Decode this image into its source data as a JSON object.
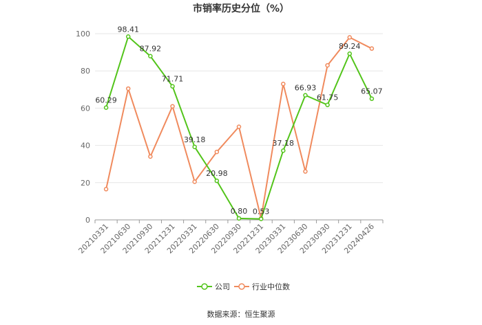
{
  "chart_data": {
    "type": "line",
    "title": "市销率历史分位（%）",
    "categories": [
      "20210331",
      "20210630",
      "20210930",
      "20211231",
      "20220331",
      "20220630",
      "20220930",
      "20221231",
      "20230331",
      "20230630",
      "20230930",
      "20231231",
      "20240426"
    ],
    "ylim": [
      0,
      100
    ],
    "yticks": [
      0,
      20,
      40,
      60,
      80,
      100
    ],
    "grid": true,
    "legend_position": "bottom",
    "series": [
      {
        "name": "公司",
        "color": "#52C41A",
        "values": [
          60.29,
          98.41,
          87.92,
          71.71,
          39.18,
          20.98,
          0.8,
          0.53,
          37.18,
          66.93,
          61.75,
          89.24,
          65.07
        ],
        "labels": [
          "60.29",
          "98.41",
          "87.92",
          "71.71",
          "39.18",
          "20.98",
          "0.80",
          "0.53",
          "37.18",
          "66.93",
          "61.75",
          "89.24",
          "65.07"
        ]
      },
      {
        "name": "行业中位数",
        "color": "#F08A5D",
        "values": [
          16.5,
          70.5,
          34.0,
          61.0,
          20.5,
          36.5,
          50.0,
          0.8,
          73.0,
          26.0,
          83.0,
          98.0,
          92.0
        ]
      }
    ],
    "source": "数据来源：恒生聚源"
  }
}
